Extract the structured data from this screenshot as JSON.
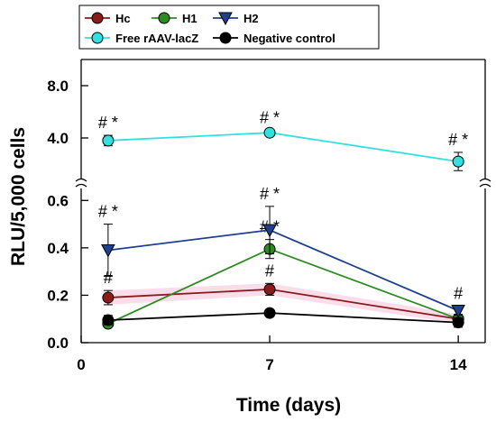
{
  "chart_data": {
    "type": "line",
    "xlabel": "Time (days)",
    "ylabel": "RLU/5,000 cells",
    "x": [
      1,
      7,
      14
    ],
    "xticks": [
      "0",
      "7",
      "14"
    ],
    "xlim": [
      0,
      15
    ],
    "axis_break": true,
    "lower_segment": {
      "ylim": [
        0.0,
        0.7
      ],
      "ticks": [
        "0.0",
        "0.2",
        "0.4",
        "0.6"
      ]
    },
    "upper_segment": {
      "ticks": [
        "4.0",
        "8.0"
      ]
    },
    "legend_position": "top-left, above plot",
    "series": [
      {
        "name": "Hc",
        "segment": "lower",
        "color": "#8b1a1a",
        "marker": "circle",
        "values": [
          0.19,
          0.225,
          0.1
        ],
        "errors": [
          0.03,
          0.025,
          0.02
        ],
        "markers_text": [
          "#",
          "#",
          ""
        ]
      },
      {
        "name": "H1",
        "segment": "lower",
        "color": "#2e8b22",
        "marker": "circle",
        "values": [
          0.08,
          0.395,
          0.1
        ],
        "errors": [
          0.0,
          0.04,
          0.0
        ],
        "markers_text": [
          "",
          "# *",
          ""
        ]
      },
      {
        "name": "H2",
        "segment": "lower",
        "color": "#1f3f8f",
        "marker": "triangle-down",
        "values": [
          0.39,
          0.475,
          0.135
        ],
        "errors": [
          0.11,
          0.1,
          0.02
        ],
        "markers_text": [
          "# *",
          "# *",
          "#"
        ]
      },
      {
        "name": "Free rAAV-lacZ",
        "segment": "upper",
        "color": "#33e0e0",
        "marker": "circle",
        "values": [
          3.8,
          4.4,
          2.2
        ],
        "errors": [
          0.4,
          0.2,
          0.7
        ],
        "markers_text": [
          "# *",
          "# *",
          "# *"
        ]
      },
      {
        "name": "Negative control",
        "segment": "lower",
        "color": "#000000",
        "marker": "circle",
        "values": [
          0.095,
          0.125,
          0.085
        ],
        "errors": [
          0.02,
          0.0,
          0.02
        ],
        "markers_text": [
          "",
          "",
          ""
        ]
      }
    ]
  }
}
